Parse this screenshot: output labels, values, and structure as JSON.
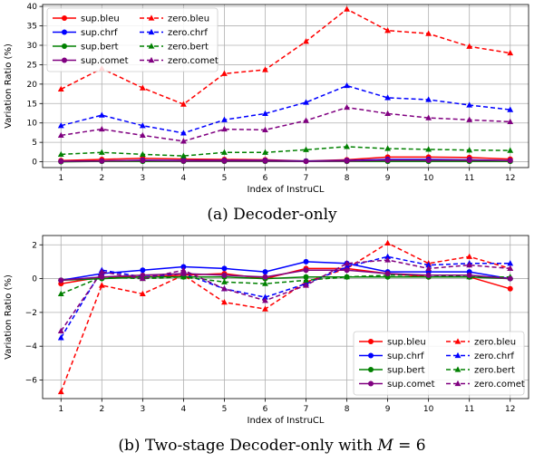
{
  "captions": {
    "top_prefix": "(a) Decoder-only",
    "bottom_prefix": "(b) Two-stage Decoder-only with ",
    "bottom_math_var": "M",
    "bottom_math_rest": " = 6"
  },
  "chart_data": [
    {
      "type": "line",
      "xlabel": "Index of InstruCL",
      "ylabel": "Variation Ratio (%)",
      "x": [
        1,
        2,
        3,
        4,
        5,
        6,
        7,
        8,
        9,
        10,
        11,
        12
      ],
      "xlim": [
        0.55,
        12.45
      ],
      "ylim": [
        -1.5,
        40.5
      ],
      "yticks": [
        0,
        5,
        10,
        15,
        20,
        25,
        30,
        35,
        40
      ],
      "grid": true,
      "legend": "top-left, 2 columns",
      "series": [
        {
          "name": "sup.bleu",
          "color": "#ff0000",
          "dashed": false,
          "marker": "circle",
          "values": [
            0.3,
            0.6,
            0.9,
            0.7,
            0.6,
            0.5,
            0.2,
            0.5,
            1.2,
            1.2,
            1.1,
            0.7
          ]
        },
        {
          "name": "zero.bleu",
          "color": "#ff0000",
          "dashed": true,
          "marker": "triangle",
          "values": [
            18.7,
            24.0,
            19.0,
            14.8,
            22.7,
            23.7,
            31.0,
            39.3,
            33.8,
            33.0,
            29.7,
            28.0
          ]
        },
        {
          "name": "sup.chrf",
          "color": "#0000ff",
          "dashed": false,
          "marker": "circle",
          "values": [
            0.1,
            0.2,
            0.4,
            0.3,
            0.3,
            0.3,
            0.2,
            0.3,
            0.6,
            0.6,
            0.5,
            0.3
          ]
        },
        {
          "name": "zero.chrf",
          "color": "#0000ff",
          "dashed": true,
          "marker": "triangle",
          "values": [
            9.3,
            12.0,
            9.3,
            7.4,
            10.8,
            12.4,
            15.3,
            19.6,
            16.5,
            16.0,
            14.6,
            13.4
          ]
        },
        {
          "name": "sup.bert",
          "color": "#008000",
          "dashed": false,
          "marker": "circle",
          "values": [
            0.0,
            0.1,
            0.1,
            0.1,
            0.1,
            0.1,
            0.1,
            0.1,
            0.1,
            0.1,
            0.1,
            0.1
          ]
        },
        {
          "name": "zero.bert",
          "color": "#008000",
          "dashed": true,
          "marker": "triangle",
          "values": [
            1.9,
            2.4,
            1.9,
            1.5,
            2.4,
            2.4,
            3.1,
            3.9,
            3.4,
            3.2,
            3.0,
            2.9
          ]
        },
        {
          "name": "sup.comet",
          "color": "#800080",
          "dashed": false,
          "marker": "circle",
          "values": [
            0.1,
            0.2,
            0.3,
            0.2,
            0.2,
            0.2,
            0.1,
            0.2,
            0.4,
            0.4,
            0.4,
            0.3
          ]
        },
        {
          "name": "zero.comet",
          "color": "#800080",
          "dashed": true,
          "marker": "triangle",
          "values": [
            6.8,
            8.4,
            6.8,
            5.3,
            8.4,
            8.2,
            10.6,
            14.0,
            12.4,
            11.3,
            10.8,
            10.3
          ]
        }
      ]
    },
    {
      "type": "line",
      "xlabel": "Index of InstruCL",
      "ylabel": "Variation Ratio (%)",
      "x": [
        1,
        2,
        3,
        4,
        5,
        6,
        7,
        8,
        9,
        10,
        11,
        12
      ],
      "xlim": [
        0.55,
        12.45
      ],
      "ylim": [
        -7.1,
        2.55
      ],
      "yticks": [
        -6,
        -4,
        -2,
        0,
        2
      ],
      "grid": true,
      "legend": "bottom-right, 2 columns",
      "series": [
        {
          "name": "sup.bleu",
          "color": "#ff0000",
          "dashed": false,
          "marker": "circle",
          "values": [
            -0.3,
            0.1,
            0.1,
            0.2,
            0.3,
            0.0,
            0.6,
            0.6,
            0.3,
            0.1,
            0.1,
            -0.6
          ]
        },
        {
          "name": "zero.bleu",
          "color": "#ff0000",
          "dashed": true,
          "marker": "triangle",
          "values": [
            -6.7,
            -0.4,
            -0.9,
            0.2,
            -1.4,
            -1.8,
            -0.2,
            0.6,
            2.1,
            0.9,
            1.3,
            0.6
          ]
        },
        {
          "name": "sup.chrf",
          "color": "#0000ff",
          "dashed": false,
          "marker": "circle",
          "values": [
            -0.1,
            0.3,
            0.5,
            0.7,
            0.6,
            0.4,
            1.0,
            0.9,
            0.4,
            0.4,
            0.4,
            0.0
          ]
        },
        {
          "name": "zero.chrf",
          "color": "#0000ff",
          "dashed": true,
          "marker": "triangle",
          "values": [
            -3.5,
            0.5,
            0.1,
            0.3,
            -0.6,
            -1.1,
            -0.3,
            0.7,
            1.3,
            0.8,
            0.9,
            0.9
          ]
        },
        {
          "name": "sup.bert",
          "color": "#008000",
          "dashed": false,
          "marker": "circle",
          "values": [
            -0.1,
            0.0,
            0.1,
            0.1,
            0.1,
            0.0,
            0.1,
            0.1,
            0.1,
            0.1,
            0.1,
            0.0
          ]
        },
        {
          "name": "zero.bert",
          "color": "#008000",
          "dashed": true,
          "marker": "triangle",
          "values": [
            -0.9,
            0.1,
            0.0,
            0.1,
            -0.2,
            -0.3,
            -0.1,
            0.1,
            0.2,
            0.2,
            0.1,
            0.1
          ]
        },
        {
          "name": "sup.comet",
          "color": "#800080",
          "dashed": false,
          "marker": "circle",
          "values": [
            -0.1,
            0.1,
            0.2,
            0.3,
            0.2,
            0.1,
            0.5,
            0.5,
            0.3,
            0.2,
            0.2,
            0.0
          ]
        },
        {
          "name": "zero.comet",
          "color": "#800080",
          "dashed": true,
          "marker": "triangle",
          "values": [
            -3.1,
            0.4,
            0.0,
            0.5,
            -0.6,
            -1.3,
            -0.4,
            0.9,
            1.1,
            0.6,
            0.8,
            0.6
          ]
        }
      ]
    }
  ]
}
